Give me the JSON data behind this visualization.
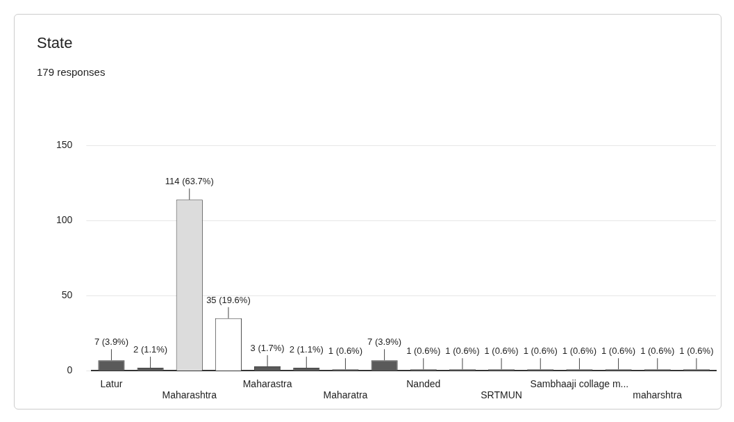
{
  "chart_data": {
    "type": "bar",
    "title": "State",
    "subtitle": "179 responses",
    "categories": [
      "Latur",
      null,
      "Maharashtra",
      null,
      "Maharastra",
      null,
      "Maharatra",
      null,
      "Nanded",
      null,
      "SRTMUN",
      null,
      "Sambhaaji collage m...",
      null,
      "maharshtra",
      null
    ],
    "values": [
      7,
      2,
      114,
      35,
      3,
      2,
      1,
      7,
      1,
      1,
      1,
      1,
      1,
      1,
      1,
      1
    ],
    "colors": [
      "#5a5a5a",
      "#5a5a5a",
      "#dcdcdc",
      "#ffffff",
      "#5a5a5a",
      "#5a5a5a",
      "#5a5a5a",
      "#5a5a5a",
      "#5a5a5a",
      "#5a5a5a",
      "#5a5a5a",
      "#5a5a5a",
      "#5a5a5a",
      "#5a5a5a",
      "#5a5a5a",
      "#5a5a5a"
    ],
    "value_labels": [
      "7 (3.9%)",
      "2 (1.1%)",
      "114 (63.7%)",
      "35 (19.6%)",
      "3 (1.7%)",
      "2 (1.1%)",
      "1 (0.6%)",
      "7 (3.9%)",
      "1 (0.6%)",
      "1 (0.6%)",
      "1 (0.6%)",
      "1 (0.6%)",
      "1 (0.6%)",
      "1 (0.6%)",
      "1 (0.6%)",
      "1 (0.6%)"
    ],
    "ylim": [
      0,
      150
    ],
    "yticks": [
      0,
      50,
      100,
      150
    ],
    "grid": "y",
    "legend": false
  }
}
